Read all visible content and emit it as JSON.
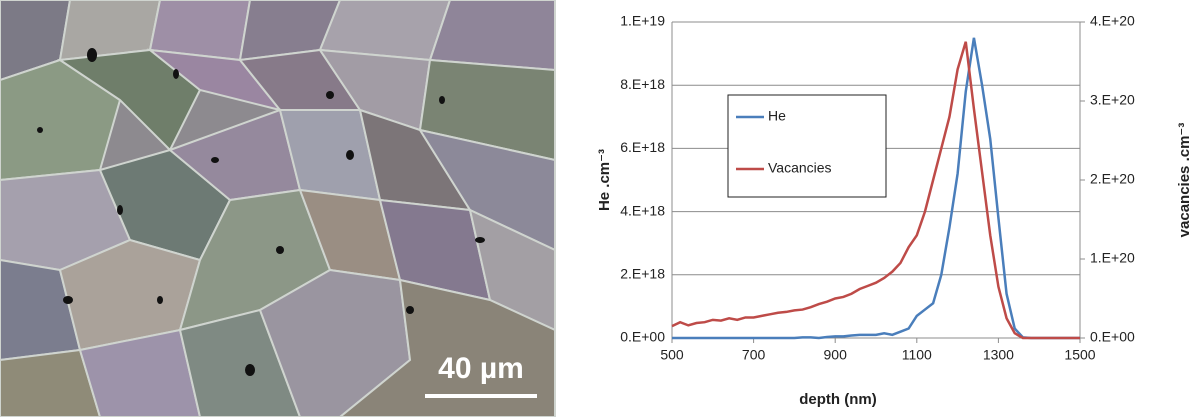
{
  "image": {
    "scale_label": "40 µm"
  },
  "chart_data": {
    "type": "line",
    "x_label": "depth (nm)",
    "y_label": "He .cm⁻³",
    "y2_label": "vacancies .cm⁻³",
    "x": [
      500,
      520,
      540,
      560,
      580,
      600,
      620,
      640,
      660,
      680,
      700,
      720,
      740,
      760,
      780,
      800,
      820,
      840,
      860,
      880,
      900,
      920,
      940,
      960,
      980,
      1000,
      1020,
      1040,
      1060,
      1080,
      1100,
      1120,
      1140,
      1160,
      1180,
      1200,
      1220,
      1240,
      1260,
      1280,
      1300,
      1320,
      1340,
      1360,
      1380,
      1400,
      1420,
      1440,
      1460,
      1480,
      1500
    ],
    "series": [
      {
        "name": "He",
        "color": "#4a7ebb",
        "values": [
          0,
          0,
          0,
          0,
          0,
          0,
          0,
          0,
          0,
          0,
          0,
          0,
          0,
          0,
          0,
          0,
          2e+16,
          2e+16,
          0,
          3e+16,
          5e+16,
          5e+16,
          8e+16,
          1e+17,
          1e+17,
          1e+17,
          1.5e+17,
          1e+17,
          2e+17,
          3e+17,
          7e+17,
          9e+17,
          1.1e+18,
          2e+18,
          3.5e+18,
          5.2e+18,
          7.8e+18,
          9.5e+18,
          8e+18,
          6.3e+18,
          3.8e+18,
          1.4e+18,
          3e+17,
          2e+16,
          0,
          0,
          0,
          0,
          0,
          0,
          0
        ]
      },
      {
        "name": "Vacancies",
        "color": "#be4b48",
        "axis": "y2",
        "values": [
          1.5e+19,
          2e+19,
          1.6e+19,
          1.9e+19,
          2e+19,
          2.3e+19,
          2.2e+19,
          2.5e+19,
          2.3e+19,
          2.6e+19,
          2.6e+19,
          2.8e+19,
          3e+19,
          3.2e+19,
          3.3e+19,
          3.5e+19,
          3.6e+19,
          3.9e+19,
          4.3e+19,
          4.6e+19,
          5e+19,
          5.2e+19,
          5.6e+19,
          6.2e+19,
          6.6e+19,
          7e+19,
          7.6e+19,
          8.4e+19,
          9.5e+19,
          1.15e+20,
          1.3e+20,
          1.6e+20,
          2e+20,
          2.4e+20,
          2.8e+20,
          3.4e+20,
          3.75e+20,
          2.9e+20,
          2.1e+20,
          1.3e+20,
          6.5e+19,
          2.5e+19,
          6e+18,
          0,
          0,
          0,
          0,
          0,
          0,
          0,
          0
        ]
      }
    ],
    "xlim": [
      500,
      1500
    ],
    "xticks": [
      500,
      700,
      900,
      1100,
      1300,
      1500
    ],
    "ylim": [
      0,
      1e+19
    ],
    "yticks": [
      {
        "value": 0,
        "label": "0.E+00"
      },
      {
        "value": 2e+18,
        "label": "2.E+18"
      },
      {
        "value": 4e+18,
        "label": "4.E+18"
      },
      {
        "value": 6e+18,
        "label": "6.E+18"
      },
      {
        "value": 8e+18,
        "label": "8.E+18"
      },
      {
        "value": 1e+19,
        "label": "1.E+19"
      }
    ],
    "y2lim": [
      0,
      4e+20
    ],
    "y2ticks": [
      {
        "value": 0,
        "label": "0.E+00"
      },
      {
        "value": 1e+20,
        "label": "1.E+20"
      },
      {
        "value": 2e+20,
        "label": "2.E+20"
      },
      {
        "value": 3e+20,
        "label": "3.E+20"
      },
      {
        "value": 4e+20,
        "label": "4.E+20"
      }
    ],
    "grid": true,
    "legend": "center left"
  }
}
